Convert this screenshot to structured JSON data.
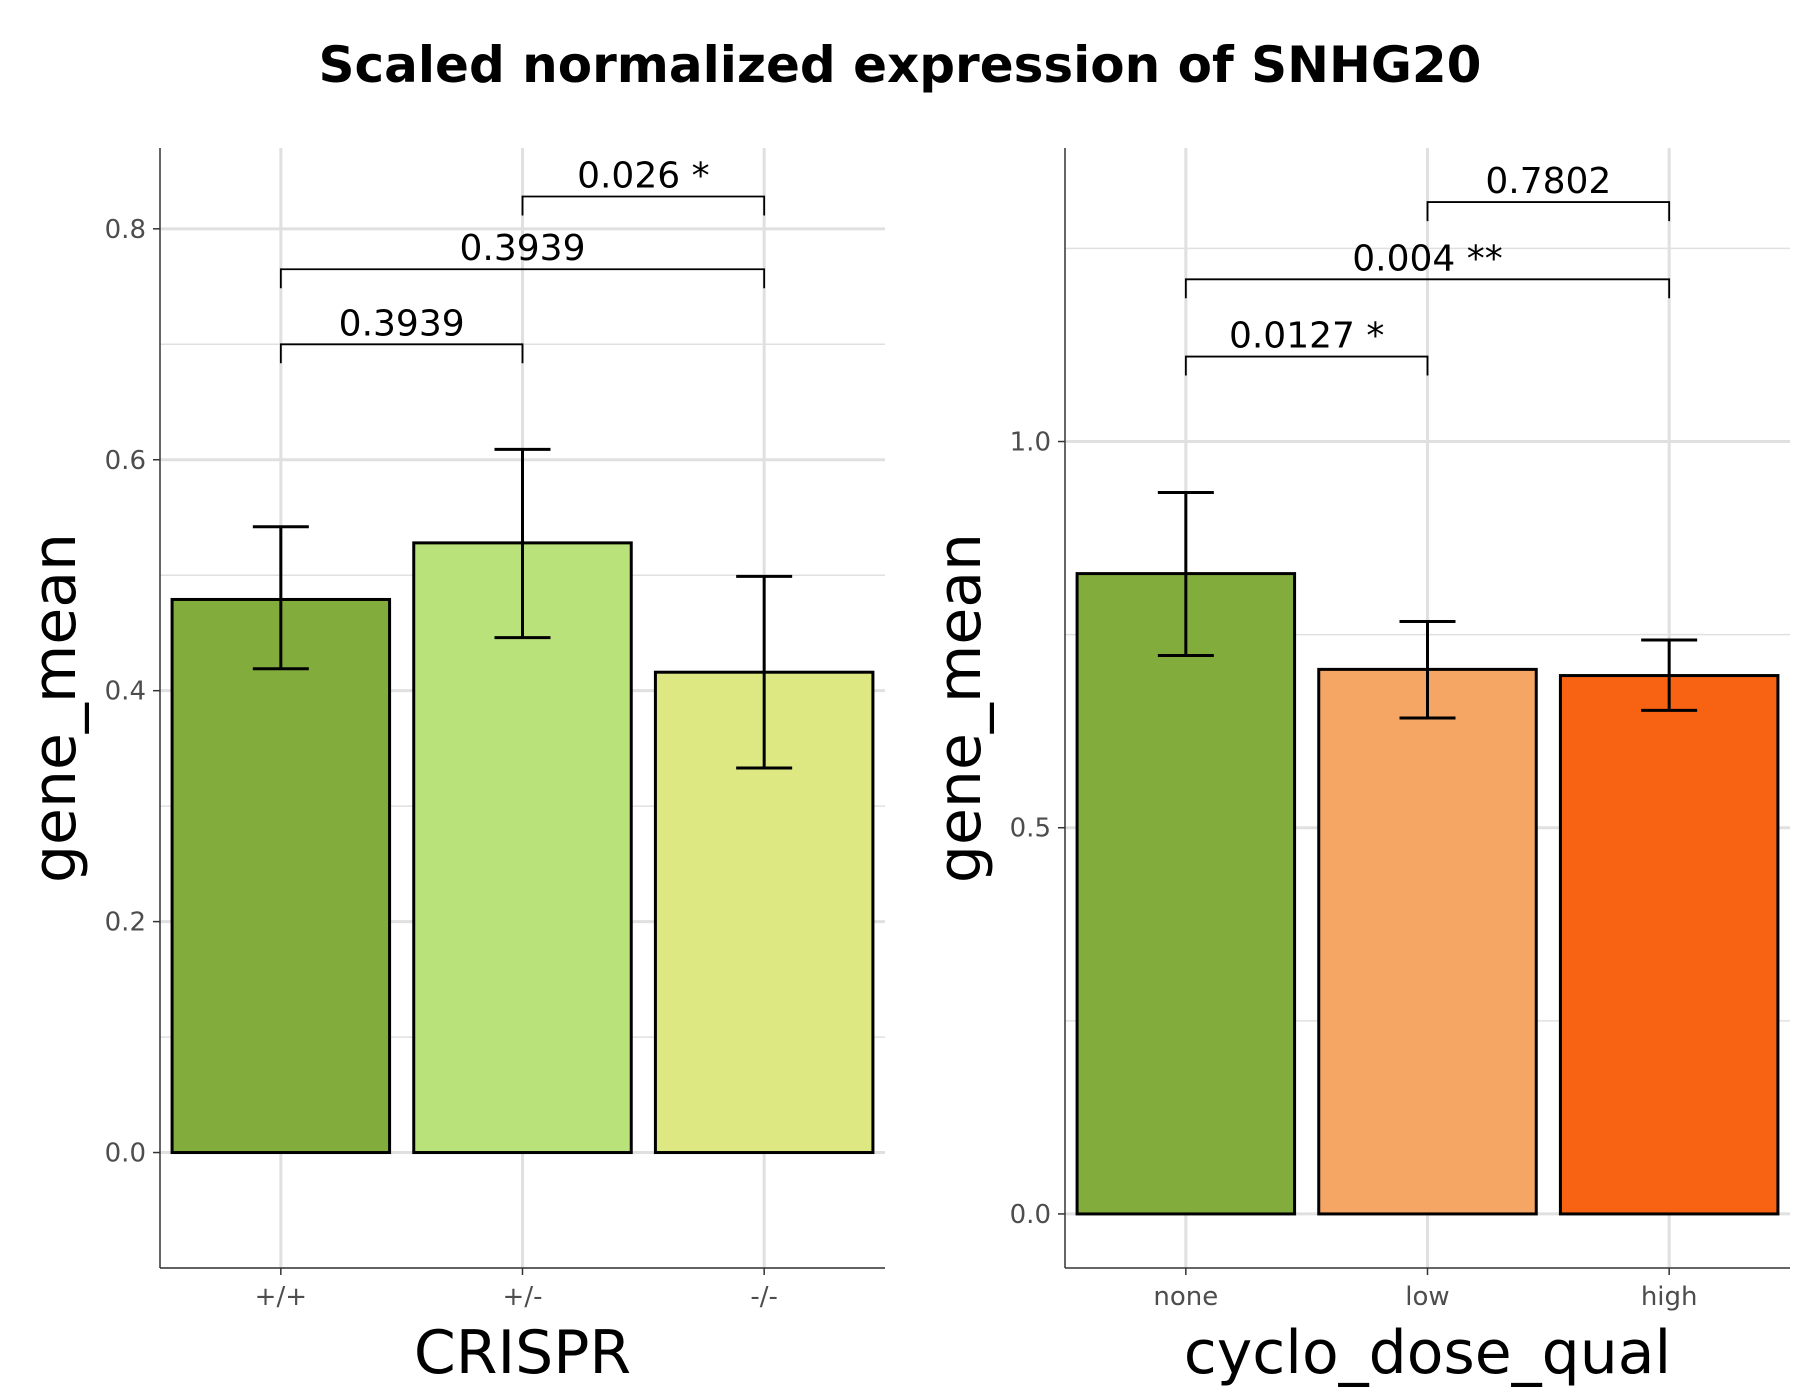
{
  "title": "Scaled normalized expression of SNHG20",
  "colors": {
    "grid": "#e0e0e0",
    "axis": "#333333",
    "bar_stroke": "#000000"
  },
  "chart_data": [
    {
      "type": "bar",
      "xlabel": "CRISPR",
      "ylabel": "gene_mean",
      "categories": [
        "+/+",
        "+/-",
        "-/-"
      ],
      "values": [
        0.479,
        0.528,
        0.416
      ],
      "error_low": [
        0.419,
        0.446,
        0.333
      ],
      "error_high": [
        0.542,
        0.609,
        0.499
      ],
      "colors": [
        "#82ad3c",
        "#b9e27a",
        "#dde883"
      ],
      "ylim": [
        -0.1,
        0.87
      ],
      "yticks": [
        0.0,
        0.2,
        0.4,
        0.6,
        0.8
      ],
      "ytick_labels": [
        "0.0",
        "0.2",
        "0.4",
        "0.6",
        "0.8"
      ],
      "grid": true,
      "comparisons": [
        {
          "from": 0,
          "to": 1,
          "label": "0.3939",
          "y": 0.7
        },
        {
          "from": 0,
          "to": 2,
          "label": "0.3939",
          "y": 0.765
        },
        {
          "from": 1,
          "to": 2,
          "label": "0.026 *",
          "y": 0.828
        }
      ]
    },
    {
      "type": "bar",
      "xlabel": "cyclo_dose_qual",
      "ylabel": "gene_mean",
      "categories": [
        "none",
        "low",
        "high"
      ],
      "values": [
        0.829,
        0.705,
        0.697
      ],
      "error_low": [
        0.723,
        0.642,
        0.652
      ],
      "error_high": [
        0.934,
        0.767,
        0.743
      ],
      "colors": [
        "#82ad3c",
        "#f5a564",
        "#f86313"
      ],
      "ylim": [
        -0.07,
        1.38
      ],
      "yticks": [
        0.0,
        0.5,
        1.0
      ],
      "ytick_labels": [
        "0.0",
        "0.5",
        "1.0"
      ],
      "grid": true,
      "comparisons": [
        {
          "from": 0,
          "to": 1,
          "label": "0.0127 *",
          "y": 1.11
        },
        {
          "from": 0,
          "to": 2,
          "label": "0.004 **",
          "y": 1.21
        },
        {
          "from": 1,
          "to": 2,
          "label": "0.7802",
          "y": 1.31
        }
      ]
    }
  ]
}
